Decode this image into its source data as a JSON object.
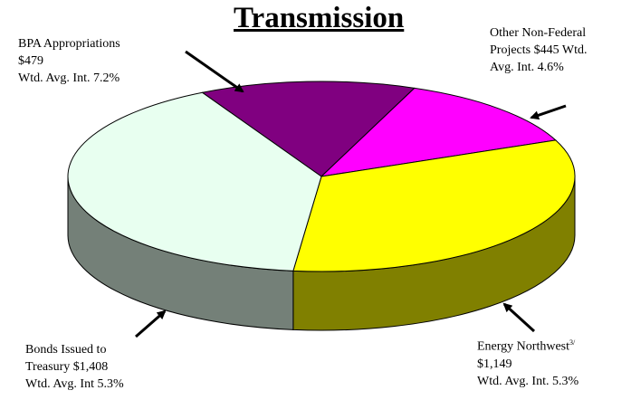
{
  "chart_data": {
    "type": "pie",
    "title": "Transmission",
    "categories": [
      "BPA Appropriations",
      "Other Non-Federal Projects",
      "Energy Northwest",
      "Bonds Issued to Treasury"
    ],
    "values": [
      479,
      445,
      1149,
      1408
    ],
    "value_labels": [
      "$479",
      "$445",
      "$1,149",
      "$1,408"
    ],
    "annotations": [
      "Wtd. Avg. Int. 7.2%",
      "Wtd. Avg. Int. 4.6%",
      "Wtd. Avg. Int. 5.3%",
      "Wtd. Avg. Int 5.3%"
    ],
    "footnote": "3/",
    "colors": [
      "#800080",
      "#ff00ff",
      "#ffff00",
      "#e8fff0"
    ]
  }
}
